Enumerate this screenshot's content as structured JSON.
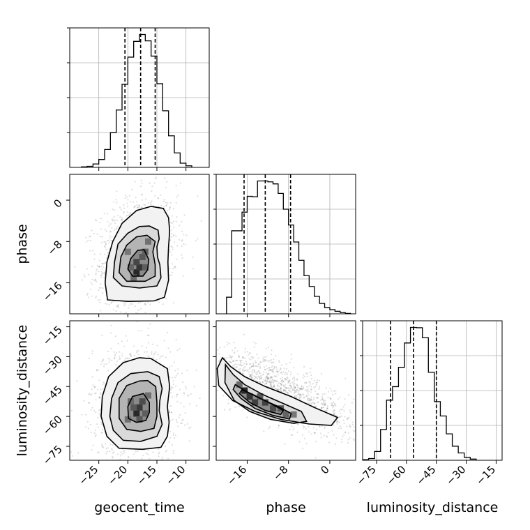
{
  "chart_data": {
    "type": "corner",
    "parameters": [
      "geocent_time",
      "phase",
      "luminosity_distance"
    ],
    "axis_labels": {
      "geocent_time": "geocent_time",
      "phase": "phase",
      "luminosity_distance": "luminosity_distance"
    },
    "ranges": {
      "geocent_time": [
        -30,
        -6
      ],
      "phase": [
        -22,
        5
      ],
      "luminosity_distance": [
        -82,
        -12
      ]
    },
    "ticks": {
      "geocent_time": [
        -25,
        -20,
        -15,
        -10
      ],
      "phase": [
        -16,
        -8,
        0
      ],
      "luminosity_distance": [
        -75,
        -60,
        -45,
        -30,
        -15
      ]
    },
    "grid": true,
    "quantiles": {
      "geocent_time": [
        -20.5,
        -17.8,
        -15.3
      ],
      "phase": [
        -16.6,
        -12.5,
        -7.6
      ],
      "luminosity_distance": [
        -68,
        -56.5,
        -45
      ]
    },
    "histograms": {
      "geocent_time": {
        "edges": [
          -28,
          -27,
          -26,
          -25,
          -24,
          -23,
          -22,
          -21,
          -20,
          -19,
          -18,
          -17,
          -16,
          -15,
          -14,
          -13,
          -12,
          -11,
          -10,
          -9
        ],
        "counts": [
          2,
          4,
          13,
          30,
          68,
          132,
          218,
          316,
          419,
          479,
          505,
          481,
          423,
          318,
          215,
          120,
          55,
          16,
          6
        ]
      },
      "phase": {
        "edges": [
          -20,
          -19,
          -18,
          -17,
          -16,
          -15,
          -14,
          -13,
          -12,
          -11,
          -10,
          -9,
          -8,
          -7,
          -6,
          -5,
          -4,
          -3,
          -2,
          -1,
          0,
          1,
          2,
          3,
          4
        ],
        "counts": [
          40,
          200,
          200,
          245,
          283,
          282,
          320,
          320,
          318,
          313,
          290,
          252,
          214,
          173,
          129,
          92,
          66,
          42,
          25,
          15,
          10,
          6,
          3,
          1
        ]
      },
      "luminosity_distance": {
        "edges": [
          -82,
          -79,
          -76,
          -73,
          -70,
          -67,
          -64,
          -61,
          -58,
          -55,
          -52,
          -49,
          -46,
          -43,
          -40,
          -37,
          -34,
          -31,
          -28,
          -25
        ],
        "counts": [
          2,
          6,
          30,
          105,
          205,
          251,
          317,
          400,
          453,
          452,
          418,
          300,
          200,
          151,
          90,
          48,
          25,
          10,
          4
        ]
      }
    },
    "pairs": [
      {
        "x": "geocent_time",
        "y": "phase",
        "center": [
          -18,
          -12.5
        ],
        "contours": [
          [
            [
              -16.3,
              -5.0
            ],
            [
              -14.8,
              -5.8
            ],
            [
              -14.6,
              -7.5
            ],
            [
              -15.0,
              -9.0
            ],
            [
              -14.9,
              -11.0
            ],
            [
              -14.5,
              -12.5
            ],
            [
              -14.3,
              -15.0
            ],
            [
              -15.0,
              -16.6
            ],
            [
              -18.0,
              -17.0
            ],
            [
              -21.0,
              -16.6
            ],
            [
              -22.5,
              -15.0
            ],
            [
              -22.3,
              -12.0
            ],
            [
              -21.7,
              -8.5
            ],
            [
              -20.0,
              -6.4
            ],
            [
              -18.0,
              -5.1
            ]
          ],
          [
            [
              -16.7,
              -6.8
            ],
            [
              -15.3,
              -8.0
            ],
            [
              -15.7,
              -10.0
            ],
            [
              -15.3,
              -12.5
            ],
            [
              -15.3,
              -14.7
            ],
            [
              -17.0,
              -15.7
            ],
            [
              -20.2,
              -15.7
            ],
            [
              -21.5,
              -14.0
            ],
            [
              -21.2,
              -11.0
            ],
            [
              -20.2,
              -8.7
            ],
            [
              -18.5,
              -7.1
            ]
          ],
          [
            [
              -17.2,
              -9.6
            ],
            [
              -16.4,
              -11.5
            ],
            [
              -16.6,
              -13.5
            ],
            [
              -17.4,
              -14.7
            ],
            [
              -19.2,
              -14.7
            ],
            [
              -20.0,
              -13.3
            ],
            [
              -19.5,
              -11.3
            ],
            [
              -18.3,
              -9.7
            ]
          ],
          [
            [
              -13.9,
              -1.6
            ],
            [
              -13.0,
              -3.4
            ],
            [
              -12.8,
              -6.0
            ],
            [
              -13.0,
              -9.0
            ],
            [
              -13.1,
              -12.0
            ],
            [
              -13.0,
              -15.5
            ],
            [
              -13.7,
              -18.8
            ],
            [
              -15.5,
              -19.5
            ],
            [
              -20.0,
              -19.6
            ],
            [
              -23.5,
              -19.3
            ],
            [
              -23.9,
              -16.0
            ],
            [
              -23.6,
              -12.0
            ],
            [
              -22.6,
              -8.0
            ],
            [
              -21.0,
              -4.5
            ],
            [
              -18.5,
              -2.0
            ],
            [
              -16.0,
              -1.2
            ]
          ]
        ],
        "density_bins": [
          {
            "x": -18.5,
            "y": -14.0,
            "level": 1.0
          },
          {
            "x": -18.0,
            "y": -13.0,
            "level": 0.9
          },
          {
            "x": -18.5,
            "y": -12.0,
            "level": 0.75
          },
          {
            "x": -17.5,
            "y": -11.0,
            "level": 0.6
          },
          {
            "x": -17.0,
            "y": -10.0,
            "level": 0.55
          },
          {
            "x": -19.5,
            "y": -13.0,
            "level": 0.5
          },
          {
            "x": -17.0,
            "y": -13.0,
            "level": 0.55
          },
          {
            "x": -19.0,
            "y": -15.0,
            "level": 0.45
          },
          {
            "x": -16.5,
            "y": -8.0,
            "level": 0.4
          },
          {
            "x": -20.0,
            "y": -10.0,
            "level": 0.35
          }
        ]
      },
      {
        "x": "geocent_time",
        "y": "luminosity_distance",
        "center": [
          -17.8,
          -57
        ],
        "contours": [
          [
            [
              -16.6,
              -37.5
            ],
            [
              -14.6,
              -40.0
            ],
            [
              -14.1,
              -46.0
            ],
            [
              -14.5,
              -52.0
            ],
            [
              -14.6,
              -57.0
            ],
            [
              -14.1,
              -64.0
            ],
            [
              -15.0,
              -70.0
            ],
            [
              -17.8,
              -72.5
            ],
            [
              -20.8,
              -72.0
            ],
            [
              -22.5,
              -67.0
            ],
            [
              -23.1,
              -60.0
            ],
            [
              -22.8,
              -51.0
            ],
            [
              -21.7,
              -43.0
            ],
            [
              -19.5,
              -38.5
            ]
          ],
          [
            [
              -16.6,
              -42.0
            ],
            [
              -15.2,
              -45.0
            ],
            [
              -15.0,
              -53.0
            ],
            [
              -15.0,
              -60.0
            ],
            [
              -15.5,
              -66.0
            ],
            [
              -17.8,
              -67.5
            ],
            [
              -20.2,
              -66.5
            ],
            [
              -21.5,
              -61.0
            ],
            [
              -21.5,
              -51.0
            ],
            [
              -20.2,
              -44.5
            ],
            [
              -18.0,
              -42.2
            ]
          ],
          [
            [
              -17.3,
              -48.5
            ],
            [
              -16.3,
              -53.0
            ],
            [
              -16.3,
              -58.0
            ],
            [
              -16.9,
              -62.0
            ],
            [
              -18.5,
              -63.0
            ],
            [
              -19.9,
              -61.0
            ],
            [
              -20.0,
              -55.0
            ],
            [
              -19.2,
              -50.0
            ]
          ],
          [
            [
              -16.0,
              -31.0
            ],
            [
              -13.2,
              -36.0
            ],
            [
              -12.8,
              -45.0
            ],
            [
              -13.2,
              -55.0
            ],
            [
              -12.9,
              -63.0
            ],
            [
              -13.2,
              -70.0
            ],
            [
              -14.3,
              -75.5
            ],
            [
              -17.5,
              -76.5
            ],
            [
              -21.5,
              -76.0
            ],
            [
              -23.6,
              -70.0
            ],
            [
              -24.6,
              -60.0
            ],
            [
              -24.4,
              -50.0
            ],
            [
              -23.3,
              -40.0
            ],
            [
              -20.8,
              -33.0
            ],
            [
              -18.0,
              -30.5
            ]
          ]
        ],
        "density_bins": [
          {
            "x": -18.5,
            "y": -58.5,
            "level": 1.0
          },
          {
            "x": -18.0,
            "y": -55.5,
            "level": 0.85
          },
          {
            "x": -17.5,
            "y": -52.5,
            "level": 0.7
          },
          {
            "x": -19.0,
            "y": -55.5,
            "level": 0.6
          },
          {
            "x": -18.0,
            "y": -61.5,
            "level": 0.6
          },
          {
            "x": -17.0,
            "y": -58.5,
            "level": 0.55
          },
          {
            "x": -19.5,
            "y": -52.5,
            "level": 0.45
          },
          {
            "x": -16.5,
            "y": -49.5,
            "level": 0.4
          },
          {
            "x": -20.0,
            "y": -61.5,
            "level": 0.4
          }
        ]
      },
      {
        "x": "phase",
        "y": "luminosity_distance",
        "center": [
          -12,
          -56
        ],
        "contours": [
          [
            [
              -20.2,
              -34.0
            ],
            [
              -18.7,
              -39.0
            ],
            [
              -16.5,
              -44.0
            ],
            [
              -13.0,
              -49.0
            ],
            [
              -9.0,
              -53.5
            ],
            [
              -5.5,
              -57.5
            ],
            [
              -4.5,
              -62.5
            ],
            [
              -7.0,
              -63.5
            ],
            [
              -11.5,
              -61.5
            ],
            [
              -15.5,
              -57.5
            ],
            [
              -18.5,
              -52.0
            ],
            [
              -20.3,
              -43.0
            ]
          ],
          [
            [
              -18.3,
              -44.0
            ],
            [
              -16.5,
              -47.0
            ],
            [
              -13.5,
              -51.0
            ],
            [
              -10.0,
              -55.0
            ],
            [
              -7.5,
              -58.5
            ],
            [
              -7.8,
              -61.3
            ],
            [
              -11.0,
              -59.5
            ],
            [
              -14.5,
              -56.0
            ],
            [
              -17.2,
              -51.0
            ],
            [
              -18.7,
              -46.5
            ]
          ],
          [
            [
              -17.0,
              -46.5
            ],
            [
              -14.5,
              -49.5
            ],
            [
              -11.5,
              -53.5
            ],
            [
              -9.0,
              -57.0
            ],
            [
              -9.5,
              -59.0
            ],
            [
              -12.5,
              -57.0
            ],
            [
              -15.5,
              -53.0
            ],
            [
              -17.5,
              -48.5
            ]
          ],
          [
            [
              -20.8,
              -30.5
            ],
            [
              -19.2,
              -35.0
            ],
            [
              -16.5,
              -40.0
            ],
            [
              -12.5,
              -45.0
            ],
            [
              -7.5,
              -50.0
            ],
            [
              -3.0,
              -55.5
            ],
            [
              1.5,
              -60.5
            ],
            [
              0.3,
              -64.5
            ],
            [
              -4.0,
              -63.8
            ],
            [
              -9.5,
              -61.5
            ],
            [
              -14.5,
              -57.5
            ],
            [
              -18.8,
              -52.0
            ],
            [
              -21.5,
              -44.5
            ],
            [
              -21.8,
              -36.0
            ]
          ]
        ],
        "density_bins": [
          {
            "x": -16.5,
            "y": -47.0,
            "level": 1.0
          },
          {
            "x": -15.5,
            "y": -50.0,
            "level": 0.9
          },
          {
            "x": -14.5,
            "y": -53.0,
            "level": 0.8
          },
          {
            "x": -12.5,
            "y": -53.0,
            "level": 0.8
          },
          {
            "x": -11.0,
            "y": -56.0,
            "level": 0.7
          },
          {
            "x": -9.5,
            "y": -56.0,
            "level": 0.6
          },
          {
            "x": -8.5,
            "y": -59.0,
            "level": 0.5
          },
          {
            "x": -13.5,
            "y": -50.0,
            "level": 0.6
          },
          {
            "x": -17.5,
            "y": -44.0,
            "level": 0.45
          },
          {
            "x": -7.0,
            "y": -59.0,
            "level": 0.35
          }
        ]
      }
    ]
  }
}
